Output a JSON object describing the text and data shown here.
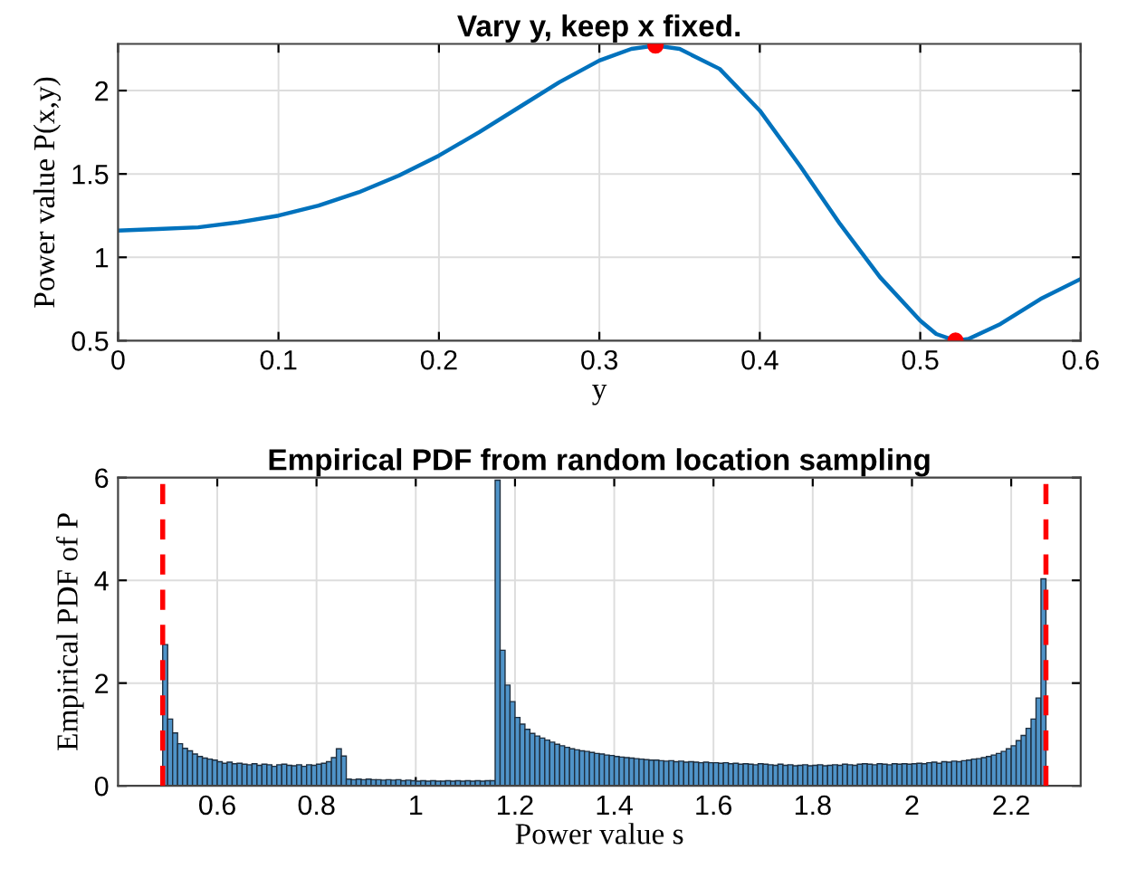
{
  "chart_data": [
    {
      "type": "line",
      "title": "Vary y, keep x fixed.",
      "xlabel": "y",
      "ylabel": "Power value P(x,y)",
      "xlim": [
        0,
        0.6
      ],
      "ylim": [
        0.5,
        2.28
      ],
      "xticks": [
        0,
        0.1,
        0.2,
        0.3,
        0.4,
        0.5,
        0.6
      ],
      "yticks": [
        0.5,
        1,
        1.5,
        2
      ],
      "grid": true,
      "line_style": "solid",
      "series": [
        {
          "type": "line",
          "color": "#0072bd",
          "x": [
            0,
            0.025,
            0.05,
            0.075,
            0.1,
            0.125,
            0.15,
            0.175,
            0.2,
            0.225,
            0.25,
            0.275,
            0.3,
            0.32,
            0.335,
            0.35,
            0.375,
            0.4,
            0.425,
            0.45,
            0.475,
            0.5,
            0.51,
            0.522,
            0.53,
            0.55,
            0.575,
            0.6
          ],
          "values": [
            1.16,
            1.17,
            1.18,
            1.21,
            1.25,
            1.31,
            1.39,
            1.49,
            1.61,
            1.75,
            1.9,
            2.05,
            2.18,
            2.25,
            2.27,
            2.25,
            2.13,
            1.88,
            1.55,
            1.2,
            0.88,
            0.62,
            0.54,
            0.5,
            0.51,
            0.6,
            0.75,
            0.87
          ]
        },
        {
          "type": "scatter",
          "color": "#ff0000",
          "marker": "circle",
          "x": [
            0.335,
            0.522
          ],
          "values": [
            2.27,
            0.5
          ]
        }
      ]
    },
    {
      "type": "histogram",
      "title": "Empirical PDF from random location sampling",
      "xlabel": "Power value s",
      "ylabel": "Empirical PDF of P",
      "xlim": [
        0.4,
        2.34
      ],
      "ylim": [
        0,
        6
      ],
      "xticks": [
        0.6,
        0.8,
        1,
        1.2,
        1.4,
        1.6,
        1.8,
        2,
        2.2
      ],
      "yticks": [
        0,
        2,
        4,
        6
      ],
      "grid": true,
      "color": "#4f93c8",
      "bins": [
        0.49,
        0.5,
        0.51,
        0.52,
        0.53,
        0.54,
        0.55,
        0.56,
        0.57,
        0.58,
        0.59,
        0.6,
        0.61,
        0.62,
        0.63,
        0.64,
        0.65,
        0.66,
        0.67,
        0.68,
        0.69,
        0.7,
        0.71,
        0.72,
        0.73,
        0.74,
        0.75,
        0.76,
        0.77,
        0.78,
        0.79,
        0.8,
        0.81,
        0.82,
        0.83,
        0.84,
        0.85,
        0.86,
        0.87,
        0.88,
        0.89,
        0.9,
        0.91,
        0.92,
        0.93,
        0.94,
        0.95,
        0.96,
        0.97,
        0.98,
        0.99,
        1.0,
        1.01,
        1.02,
        1.03,
        1.04,
        1.05,
        1.06,
        1.07,
        1.08,
        1.09,
        1.1,
        1.11,
        1.12,
        1.13,
        1.14,
        1.15,
        1.16,
        1.17,
        1.18,
        1.19,
        1.2,
        1.21,
        1.22,
        1.23,
        1.24,
        1.25,
        1.26,
        1.27,
        1.28,
        1.29,
        1.3,
        1.31,
        1.32,
        1.33,
        1.34,
        1.35,
        1.36,
        1.37,
        1.38,
        1.39,
        1.4,
        1.41,
        1.42,
        1.43,
        1.44,
        1.45,
        1.46,
        1.47,
        1.48,
        1.49,
        1.5,
        1.51,
        1.52,
        1.53,
        1.54,
        1.55,
        1.56,
        1.57,
        1.58,
        1.59,
        1.6,
        1.61,
        1.62,
        1.63,
        1.64,
        1.65,
        1.66,
        1.67,
        1.68,
        1.69,
        1.7,
        1.71,
        1.72,
        1.73,
        1.74,
        1.75,
        1.76,
        1.77,
        1.78,
        1.79,
        1.8,
        1.81,
        1.82,
        1.83,
        1.84,
        1.85,
        1.86,
        1.87,
        1.88,
        1.89,
        1.9,
        1.91,
        1.92,
        1.93,
        1.94,
        1.95,
        1.96,
        1.97,
        1.98,
        1.99,
        2.0,
        2.01,
        2.02,
        2.03,
        2.04,
        2.05,
        2.06,
        2.07,
        2.08,
        2.09,
        2.1,
        2.11,
        2.12,
        2.13,
        2.14,
        2.15,
        2.16,
        2.17,
        2.18,
        2.19,
        2.2,
        2.21,
        2.22,
        2.23,
        2.24,
        2.25,
        2.26,
        2.27
      ],
      "values": [
        2.75,
        1.3,
        1.03,
        0.82,
        0.73,
        0.68,
        0.62,
        0.57,
        0.54,
        0.52,
        0.5,
        0.47,
        0.44,
        0.46,
        0.43,
        0.44,
        0.42,
        0.41,
        0.43,
        0.4,
        0.42,
        0.41,
        0.38,
        0.41,
        0.42,
        0.4,
        0.39,
        0.41,
        0.38,
        0.41,
        0.4,
        0.42,
        0.44,
        0.47,
        0.55,
        0.72,
        0.58,
        0.13,
        0.12,
        0.13,
        0.12,
        0.13,
        0.12,
        0.12,
        0.11,
        0.12,
        0.11,
        0.12,
        0.1,
        0.11,
        0.1,
        0.09,
        0.1,
        0.09,
        0.1,
        0.09,
        0.09,
        0.1,
        0.09,
        0.1,
        0.09,
        0.1,
        0.09,
        0.1,
        0.09,
        0.1,
        0.1,
        5.95,
        2.64,
        1.96,
        1.64,
        1.33,
        1.2,
        1.1,
        1.02,
        0.97,
        0.93,
        0.89,
        0.85,
        0.81,
        0.78,
        0.75,
        0.72,
        0.7,
        0.68,
        0.67,
        0.65,
        0.63,
        0.62,
        0.6,
        0.59,
        0.57,
        0.56,
        0.55,
        0.54,
        0.53,
        0.52,
        0.51,
        0.5,
        0.5,
        0.49,
        0.48,
        0.49,
        0.47,
        0.48,
        0.46,
        0.47,
        0.46,
        0.45,
        0.46,
        0.45,
        0.45,
        0.44,
        0.45,
        0.43,
        0.44,
        0.42,
        0.43,
        0.42,
        0.41,
        0.43,
        0.42,
        0.41,
        0.4,
        0.42,
        0.4,
        0.41,
        0.39,
        0.4,
        0.41,
        0.39,
        0.4,
        0.41,
        0.39,
        0.4,
        0.41,
        0.4,
        0.42,
        0.41,
        0.4,
        0.42,
        0.43,
        0.42,
        0.41,
        0.43,
        0.42,
        0.41,
        0.43,
        0.42,
        0.43,
        0.42,
        0.43,
        0.44,
        0.43,
        0.45,
        0.46,
        0.44,
        0.47,
        0.46,
        0.48,
        0.47,
        0.49,
        0.5,
        0.52,
        0.53,
        0.55,
        0.57,
        0.6,
        0.63,
        0.67,
        0.72,
        0.78,
        0.88,
        0.98,
        1.12,
        1.3,
        1.71,
        4.03
      ],
      "ref_lines": [
        {
          "axis": "x",
          "value": 0.49,
          "color": "#ff0000",
          "line_style": "dashed"
        },
        {
          "axis": "x",
          "value": 2.27,
          "color": "#ff0000",
          "line_style": "dashed"
        }
      ]
    }
  ]
}
